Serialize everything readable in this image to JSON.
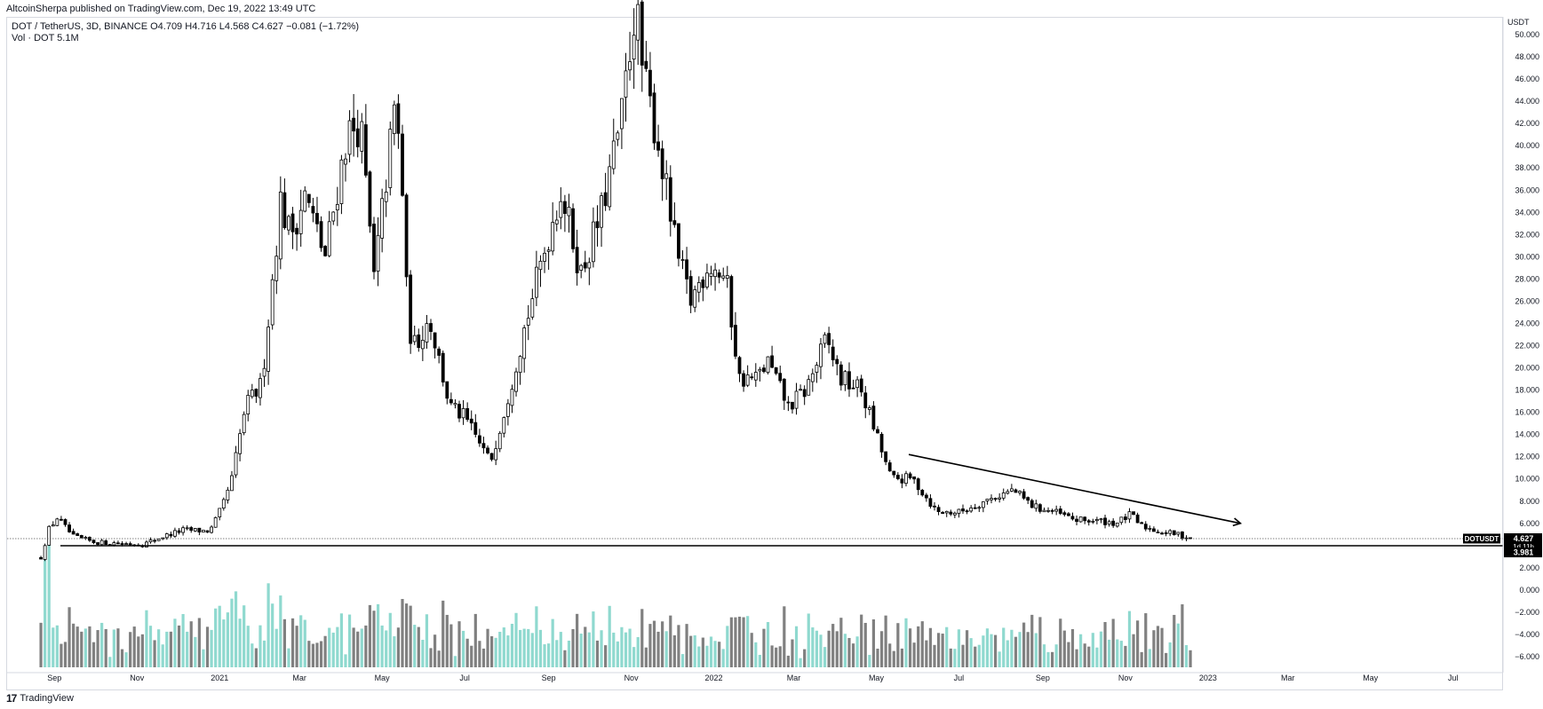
{
  "header": {
    "credit": "AltcoinSherpa published on TradingView.com, Dec 19, 2022 13:49 UTC"
  },
  "legend": {
    "symbol_line": "DOT / TetherUS, 3D, BINANCE",
    "open": "O4.709",
    "high": "H4.716",
    "low": "L4.568",
    "close": "C4.627",
    "change": "−0.081 (−1.72%)",
    "volume_line": "Vol · DOT",
    "volume_value": "5.1M"
  },
  "footer": {
    "logo": "17",
    "brand": "TradingView"
  },
  "price_axis": {
    "currency": "USDT",
    "ticks": [
      "50.000",
      "48.000",
      "46.000",
      "44.000",
      "42.000",
      "40.000",
      "38.000",
      "36.000",
      "34.000",
      "32.000",
      "30.000",
      "28.000",
      "26.000",
      "24.000",
      "22.000",
      "20.000",
      "18.000",
      "16.000",
      "14.000",
      "12.000",
      "10.000",
      "8.000",
      "6.000",
      "4.000",
      "2.000",
      "0.000",
      "−2.000",
      "−4.000",
      "−6.000"
    ],
    "current_label": "DOTUSDT",
    "current_price": "4.627",
    "countdown": "1d 11h",
    "support_price": "3.981"
  },
  "colors": {
    "up_candle": "#ffffff",
    "down_candle": "#000000",
    "up_volume": "#8fd9cf",
    "down_volume": "#808080",
    "axis_text": "#131722"
  },
  "chart_data": {
    "type": "candlestick",
    "title": "DOT / TetherUS, 3D, BINANCE",
    "x_ticks": [
      "Sep",
      "Nov",
      "2021",
      "Mar",
      "May",
      "Jul",
      "Sep",
      "Nov",
      "2022",
      "Mar",
      "May",
      "Jul",
      "Sep",
      "Nov",
      "2023",
      "Mar",
      "May",
      "Jul"
    ],
    "ylim": [
      -7,
      51
    ],
    "grid": false,
    "price_path": [
      {
        "date": "2020-08-22",
        "price": 2.9
      },
      {
        "date": "2020-08-28",
        "price": 5.5
      },
      {
        "date": "2020-09-03",
        "price": 6.5
      },
      {
        "date": "2020-09-15",
        "price": 4.8
      },
      {
        "date": "2020-10-01",
        "price": 4.3
      },
      {
        "date": "2020-10-20",
        "price": 4.2
      },
      {
        "date": "2020-11-05",
        "price": 4.1
      },
      {
        "date": "2020-11-20",
        "price": 4.8
      },
      {
        "date": "2020-12-05",
        "price": 5.4
      },
      {
        "date": "2020-12-25",
        "price": 5.3
      },
      {
        "date": "2021-01-03",
        "price": 7.5
      },
      {
        "date": "2021-01-10",
        "price": 10.0
      },
      {
        "date": "2021-01-20",
        "price": 16.5
      },
      {
        "date": "2021-02-01",
        "price": 18.5
      },
      {
        "date": "2021-02-15",
        "price": 35.0
      },
      {
        "date": "2021-02-22",
        "price": 32.0
      },
      {
        "date": "2021-03-05",
        "price": 35.5
      },
      {
        "date": "2021-03-20",
        "price": 30.0
      },
      {
        "date": "2021-04-05",
        "price": 41.0
      },
      {
        "date": "2021-04-15",
        "price": 42.0
      },
      {
        "date": "2021-04-25",
        "price": 28.0
      },
      {
        "date": "2021-05-10",
        "price": 43.0
      },
      {
        "date": "2021-05-15",
        "price": 39.0
      },
      {
        "date": "2021-05-20",
        "price": 24.0
      },
      {
        "date": "2021-05-25",
        "price": 22.0
      },
      {
        "date": "2021-06-05",
        "price": 24.5
      },
      {
        "date": "2021-06-20",
        "price": 16.5
      },
      {
        "date": "2021-07-01",
        "price": 15.5
      },
      {
        "date": "2021-07-20",
        "price": 11.5
      },
      {
        "date": "2021-08-01",
        "price": 17.0
      },
      {
        "date": "2021-08-15",
        "price": 24.0
      },
      {
        "date": "2021-09-01",
        "price": 32.0
      },
      {
        "date": "2021-09-10",
        "price": 36.0
      },
      {
        "date": "2021-09-25",
        "price": 28.5
      },
      {
        "date": "2021-10-10",
        "price": 34.0
      },
      {
        "date": "2021-10-25",
        "price": 42.5
      },
      {
        "date": "2021-11-04",
        "price": 53.0
      },
      {
        "date": "2021-11-10",
        "price": 46.0
      },
      {
        "date": "2021-11-20",
        "price": 41.0
      },
      {
        "date": "2021-12-05",
        "price": 30.0
      },
      {
        "date": "2021-12-15",
        "price": 26.0
      },
      {
        "date": "2021-12-28",
        "price": 29.5
      },
      {
        "date": "2022-01-10",
        "price": 28.0
      },
      {
        "date": "2022-01-20",
        "price": 19.0
      },
      {
        "date": "2022-02-01",
        "price": 19.0
      },
      {
        "date": "2022-02-10",
        "price": 20.5
      },
      {
        "date": "2022-02-25",
        "price": 16.5
      },
      {
        "date": "2022-03-10",
        "price": 18.0
      },
      {
        "date": "2022-03-25",
        "price": 22.5
      },
      {
        "date": "2022-04-05",
        "price": 19.0
      },
      {
        "date": "2022-04-20",
        "price": 18.0
      },
      {
        "date": "2022-05-05",
        "price": 12.5
      },
      {
        "date": "2022-05-12",
        "price": 10.0
      },
      {
        "date": "2022-05-28",
        "price": 10.0
      },
      {
        "date": "2022-06-15",
        "price": 7.0
      },
      {
        "date": "2022-07-01",
        "price": 7.0
      },
      {
        "date": "2022-07-20",
        "price": 8.0
      },
      {
        "date": "2022-08-10",
        "price": 9.0
      },
      {
        "date": "2022-08-25",
        "price": 7.5
      },
      {
        "date": "2022-09-10",
        "price": 7.0
      },
      {
        "date": "2022-09-25",
        "price": 6.3
      },
      {
        "date": "2022-10-15",
        "price": 6.2
      },
      {
        "date": "2022-10-25",
        "price": 6.0
      },
      {
        "date": "2022-11-05",
        "price": 6.8
      },
      {
        "date": "2022-11-12",
        "price": 5.8
      },
      {
        "date": "2022-11-25",
        "price": 5.3
      },
      {
        "date": "2022-12-10",
        "price": 5.0
      },
      {
        "date": "2022-12-19",
        "price": 4.627
      }
    ],
    "trendline": {
      "start": {
        "date": "2022-05-25",
        "price": 12.2
      },
      "end": {
        "date": "2023-01-25",
        "price": 6.0
      }
    },
    "support_level": 3.981,
    "last_price": 4.627
  }
}
